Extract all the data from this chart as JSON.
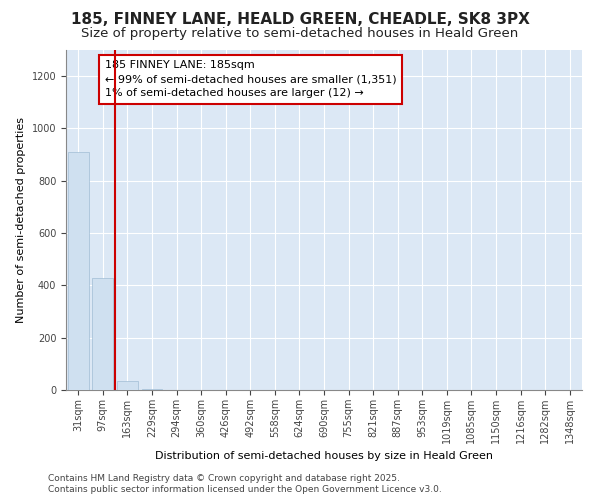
{
  "title": "185, FINNEY LANE, HEALD GREEN, CHEADLE, SK8 3PX",
  "subtitle": "Size of property relative to semi-detached houses in Heald Green",
  "xlabel": "Distribution of semi-detached houses by size in Heald Green",
  "ylabel": "Number of semi-detached properties",
  "categories": [
    "31sqm",
    "97sqm",
    "163sqm",
    "229sqm",
    "294sqm",
    "360sqm",
    "426sqm",
    "492sqm",
    "558sqm",
    "624sqm",
    "690sqm",
    "755sqm",
    "821sqm",
    "887sqm",
    "953sqm",
    "1019sqm",
    "1085sqm",
    "1150sqm",
    "1216sqm",
    "1282sqm",
    "1348sqm"
  ],
  "values": [
    910,
    430,
    35,
    3,
    1,
    0,
    0,
    0,
    0,
    0,
    0,
    0,
    0,
    0,
    0,
    0,
    0,
    0,
    0,
    0,
    0
  ],
  "bar_color": "#cfe0f0",
  "bar_edge_color": "#a0bdd4",
  "ylim": [
    0,
    1300
  ],
  "yticks": [
    0,
    200,
    400,
    600,
    800,
    1000,
    1200
  ],
  "vline_x_index": 1.5,
  "annotation_line1": "185 FINNEY LANE: 185sqm",
  "annotation_line2": "← 99% of semi-detached houses are smaller (1,351)",
  "annotation_line3": "1% of semi-detached houses are larger (12) →",
  "footer_line1": "Contains HM Land Registry data © Crown copyright and database right 2025.",
  "footer_line2": "Contains public sector information licensed under the Open Government Licence v3.0.",
  "bg_color": "#dce8f5",
  "annotation_box_color": "#cc0000",
  "vline_color": "#cc0000",
  "title_fontsize": 11,
  "subtitle_fontsize": 9.5,
  "axis_fontsize": 8,
  "tick_fontsize": 7,
  "annotation_fontsize": 8,
  "footer_fontsize": 6.5
}
